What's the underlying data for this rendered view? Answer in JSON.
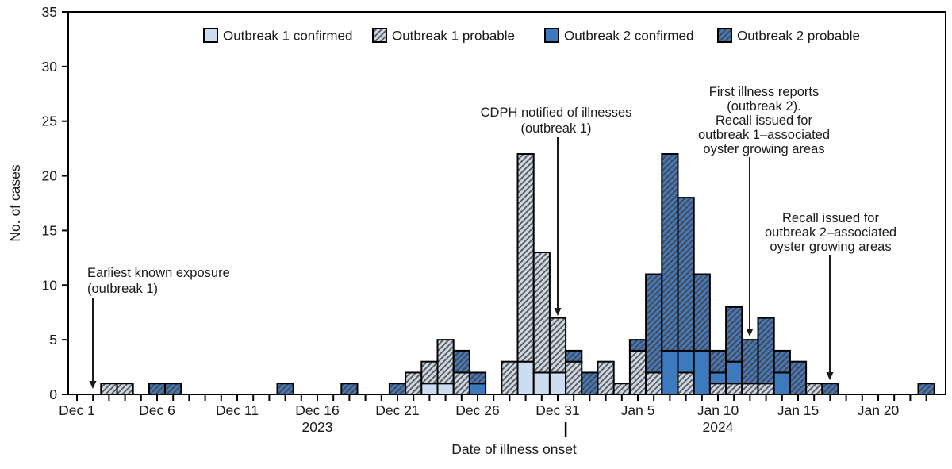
{
  "figure": {
    "background": "#ffffff",
    "axis_color": "#000000",
    "bar_border_color": "#000000",
    "text_color": "#1a1a1a"
  },
  "legend": {
    "items": [
      {
        "key": "o1_confirmed",
        "label": "Outbreak 1 confirmed",
        "style": "solid",
        "color": "#cdddf1"
      },
      {
        "key": "o1_probable",
        "label": "Outbreak 1 probable",
        "style": "hatch",
        "color": "#cbd5e3",
        "hatch_color": "#595959"
      },
      {
        "key": "o2_confirmed",
        "label": "Outbreak 2 confirmed",
        "style": "solid",
        "color": "#3c79bd"
      },
      {
        "key": "o2_probable",
        "label": "Outbreak 2 probable",
        "style": "hatch",
        "color": "#4478ba",
        "hatch_color": "#454545"
      }
    ]
  },
  "chart_data": {
    "type": "bar",
    "stacked": true,
    "title": "",
    "xlabel": "Date of illness onset",
    "ylabel": "No. of cases",
    "ylim": [
      0,
      35
    ],
    "yticks": [
      0,
      5,
      10,
      15,
      20,
      25,
      30,
      35
    ],
    "grid": false,
    "legend_position": "top-inside",
    "x_days_total": 54,
    "year_separator_day": 30.5,
    "x_major_ticks": [
      {
        "day": 0,
        "label": "Dec 1"
      },
      {
        "day": 5,
        "label": "Dec 6"
      },
      {
        "day": 10,
        "label": "Dec 11"
      },
      {
        "day": 15,
        "label": "Dec 16",
        "sublabel": "2023"
      },
      {
        "day": 20,
        "label": "Dec 21"
      },
      {
        "day": 25,
        "label": "Dec 26"
      },
      {
        "day": 30,
        "label": "Dec 31"
      },
      {
        "day": 35,
        "label": "Jan 5"
      },
      {
        "day": 40,
        "label": "Jan 10",
        "sublabel": "2024"
      },
      {
        "day": 45,
        "label": "Jan 15"
      },
      {
        "day": 50,
        "label": "Jan 20"
      }
    ],
    "stack_order": [
      "o1_confirmed",
      "o1_probable",
      "o2_confirmed",
      "o2_probable"
    ],
    "bars": [
      {
        "date": "Dec 3",
        "day": 2,
        "o1_probable": 1
      },
      {
        "date": "Dec 4",
        "day": 3,
        "o1_probable": 1
      },
      {
        "date": "Dec 6",
        "day": 5,
        "o2_probable": 1
      },
      {
        "date": "Dec 7",
        "day": 6,
        "o2_probable": 1
      },
      {
        "date": "Dec 14",
        "day": 13,
        "o2_probable": 1
      },
      {
        "date": "Dec 18",
        "day": 17,
        "o2_probable": 1
      },
      {
        "date": "Dec 21",
        "day": 20,
        "o2_probable": 1
      },
      {
        "date": "Dec 22",
        "day": 21,
        "o1_probable": 2
      },
      {
        "date": "Dec 23",
        "day": 22,
        "o1_confirmed": 1,
        "o1_probable": 2
      },
      {
        "date": "Dec 24",
        "day": 23,
        "o1_confirmed": 1,
        "o1_probable": 4
      },
      {
        "date": "Dec 25",
        "day": 24,
        "o1_probable": 2,
        "o2_probable": 2
      },
      {
        "date": "Dec 26",
        "day": 25,
        "o2_confirmed": 1,
        "o2_probable": 1
      },
      {
        "date": "Dec 28",
        "day": 27,
        "o1_probable": 3
      },
      {
        "date": "Dec 29",
        "day": 28,
        "o1_confirmed": 3,
        "o1_probable": 19
      },
      {
        "date": "Dec 30",
        "day": 29,
        "o1_confirmed": 2,
        "o1_probable": 11
      },
      {
        "date": "Dec 31",
        "day": 30,
        "o1_confirmed": 2,
        "o1_probable": 5
      },
      {
        "date": "Jan 1",
        "day": 31,
        "o1_probable": 3,
        "o2_probable": 1
      },
      {
        "date": "Jan 2",
        "day": 32,
        "o2_probable": 2
      },
      {
        "date": "Jan 3",
        "day": 33,
        "o1_probable": 3
      },
      {
        "date": "Jan 4",
        "day": 34,
        "o1_probable": 1
      },
      {
        "date": "Jan 5",
        "day": 35,
        "o1_probable": 4,
        "o2_probable": 1
      },
      {
        "date": "Jan 6",
        "day": 36,
        "o1_probable": 2,
        "o2_probable": 9
      },
      {
        "date": "Jan 7",
        "day": 37,
        "o2_confirmed": 4,
        "o2_probable": 18
      },
      {
        "date": "Jan 8",
        "day": 38,
        "o1_probable": 2,
        "o2_confirmed": 2,
        "o2_probable": 14
      },
      {
        "date": "Jan 9",
        "day": 39,
        "o2_confirmed": 4,
        "o2_probable": 7
      },
      {
        "date": "Jan 10",
        "day": 40,
        "o1_probable": 1,
        "o2_confirmed": 1,
        "o2_probable": 2
      },
      {
        "date": "Jan 11",
        "day": 41,
        "o1_probable": 1,
        "o2_confirmed": 2,
        "o2_probable": 5
      },
      {
        "date": "Jan 12",
        "day": 42,
        "o1_probable": 1,
        "o2_probable": 4
      },
      {
        "date": "Jan 13",
        "day": 43,
        "o1_probable": 1,
        "o2_probable": 6
      },
      {
        "date": "Jan 14",
        "day": 44,
        "o2_confirmed": 2,
        "o2_probable": 2
      },
      {
        "date": "Jan 15",
        "day": 45,
        "o2_probable": 3
      },
      {
        "date": "Jan 16",
        "day": 46,
        "o1_probable": 1
      },
      {
        "date": "Jan 17",
        "day": 47,
        "o2_probable": 1
      },
      {
        "date": "Jan 23",
        "day": 53,
        "o2_probable": 1
      }
    ]
  },
  "annotations": [
    {
      "id": "earliest-exposure",
      "lines": [
        "Earliest known exposure",
        "(outbreak 1)"
      ],
      "target_date": "Dec 2"
    },
    {
      "id": "cdph-notified",
      "lines": [
        "CDPH notified of illnesses",
        "(outbreak 1)"
      ],
      "target_date": "Dec 31"
    },
    {
      "id": "first-illness-recall-1",
      "lines": [
        "First illness reports",
        "(outbreak 2).",
        "Recall issued for",
        "outbreak 1–associated",
        "oyster growing areas"
      ],
      "target_date": "Jan 12"
    },
    {
      "id": "recall-2",
      "lines": [
        "Recall issued for",
        "outbreak 2–associated",
        "oyster growing areas"
      ],
      "target_date": "Jan 17"
    }
  ]
}
